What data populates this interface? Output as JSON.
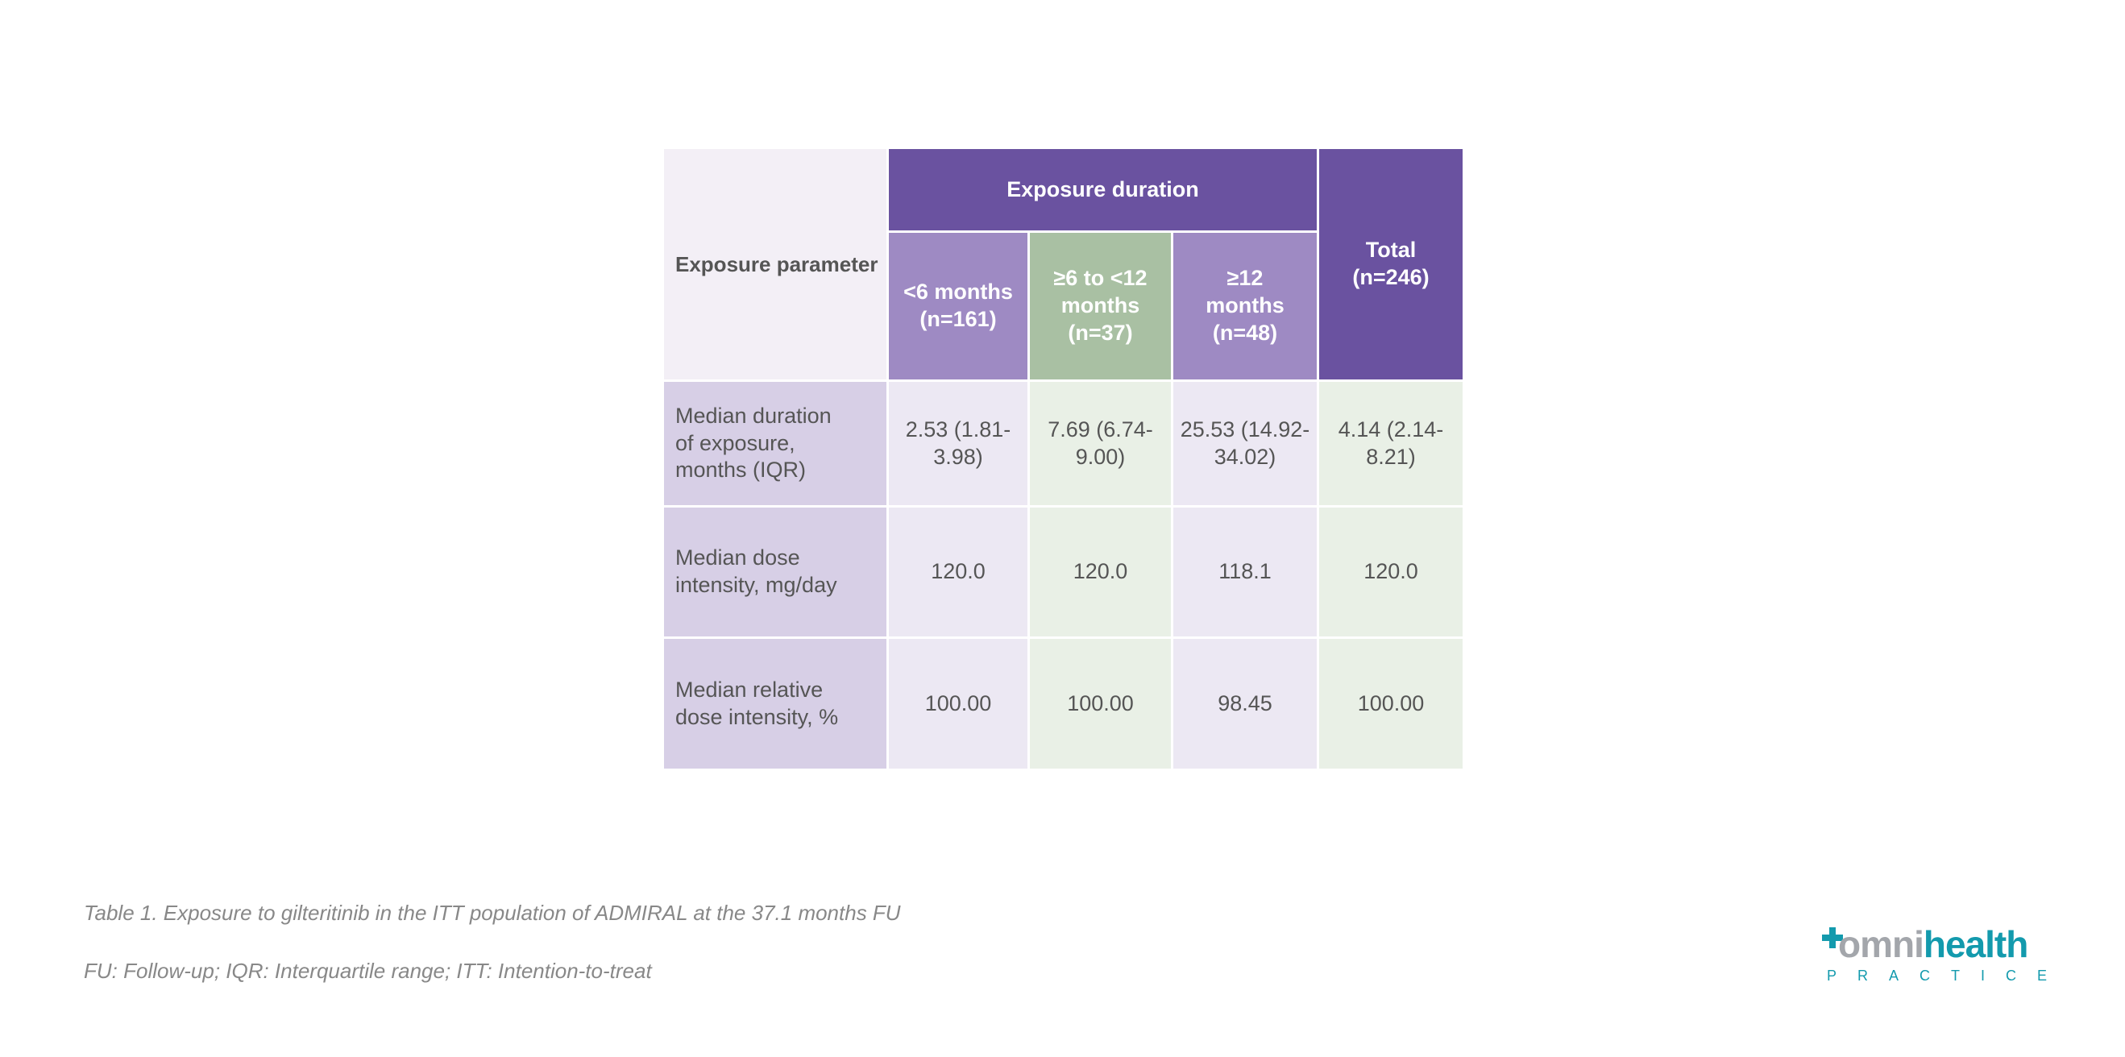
{
  "table": {
    "corner_header": "Exposure parameter",
    "group_header": "Exposure duration",
    "columns": [
      "<6 months (n=161)",
      "≥6 to <12 months (n=37)",
      "≥12 months (n=48)",
      "Total (n=246)"
    ],
    "rows": [
      {
        "label": "Median duration of exposure, months (IQR)",
        "values": [
          "2.53 (1.81-3.98)",
          "7.69 (6.74-9.00)",
          "25.53 (14.92-34.02)",
          "4.14 (2.14-8.21)"
        ]
      },
      {
        "label": "Median dose intensity, mg/day",
        "values": [
          "120.0",
          "120.0",
          "118.1",
          "120.0"
        ]
      },
      {
        "label": "Median relative dose intensity, %",
        "values": [
          "100.00",
          "100.00",
          "98.45",
          "100.00"
        ]
      }
    ]
  },
  "caption": "Table 1. Exposure to gilteritinib in the ITT population of ADMIRAL at the 37.1 months FU",
  "footnote": "FU: Follow-up; IQR: Interquartile range; ITT: Intention-to-treat",
  "logo": {
    "word_grey": "mni",
    "word_teal": "health",
    "sub": "PRACTICE"
  },
  "colors": {
    "header_dark": "#6a52a0",
    "header_light_purple": "#9e8ac3",
    "header_green": "#a9c0a3",
    "brand_teal": "#139aad"
  }
}
